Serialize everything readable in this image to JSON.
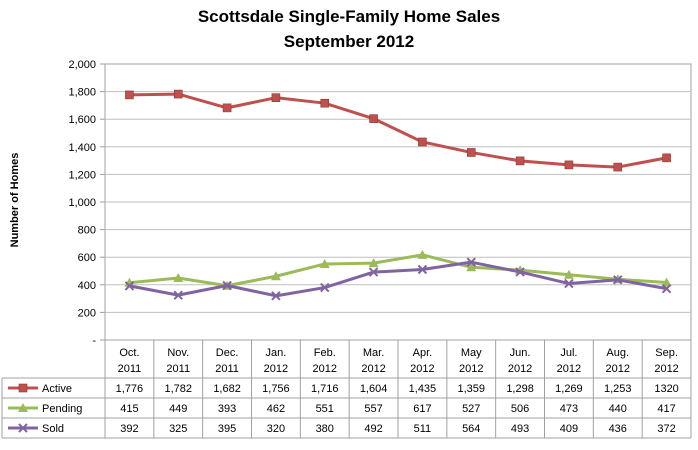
{
  "chart_data": {
    "type": "line",
    "title": "Scottsdale Single-Family Home Sales",
    "subtitle": "September 2012",
    "ylabel": "Number of Homes",
    "ylim": [
      0,
      2000
    ],
    "yticks": [
      "-",
      "200",
      "400",
      "600",
      "800",
      "1,000",
      "1,200",
      "1,400",
      "1,600",
      "1,800",
      "2,000"
    ],
    "grid": true,
    "legend": "data-table",
    "categories": [
      [
        "Oct.",
        "2011"
      ],
      [
        "Nov.",
        "2011"
      ],
      [
        "Dec.",
        "2011"
      ],
      [
        "Jan.",
        "2012"
      ],
      [
        "Feb.",
        "2012"
      ],
      [
        "Mar.",
        "2012"
      ],
      [
        "Apr.",
        "2012"
      ],
      [
        "May",
        "2012"
      ],
      [
        "Jun.",
        "2012"
      ],
      [
        "Jul.",
        "2012"
      ],
      [
        "Aug.",
        "2012"
      ],
      [
        "Sep.",
        "2012"
      ]
    ],
    "series": [
      {
        "name": "Active",
        "color": "#c0504d",
        "marker": "square",
        "values": [
          1776,
          1782,
          1682,
          1756,
          1716,
          1604,
          1435,
          1359,
          1298,
          1269,
          1253,
          1320
        ],
        "labels": [
          "1,776",
          "1,782",
          "1,682",
          "1,756",
          "1,716",
          "1,604",
          "1,435",
          "1,359",
          "1,298",
          "1,269",
          "1,253",
          "1320"
        ]
      },
      {
        "name": "Pending",
        "color": "#9bbb59",
        "marker": "triangle",
        "values": [
          415,
          449,
          393,
          462,
          551,
          557,
          617,
          527,
          506,
          473,
          440,
          417
        ],
        "labels": [
          "415",
          "449",
          "393",
          "462",
          "551",
          "557",
          "617",
          "527",
          "506",
          "473",
          "440",
          "417"
        ]
      },
      {
        "name": "Sold",
        "color": "#8064a2",
        "marker": "x",
        "values": [
          392,
          325,
          395,
          320,
          380,
          492,
          511,
          564,
          493,
          409,
          436,
          372
        ],
        "labels": [
          "392",
          "325",
          "395",
          "320",
          "380",
          "492",
          "511",
          "564",
          "493",
          "409",
          "436",
          "372"
        ]
      }
    ]
  }
}
